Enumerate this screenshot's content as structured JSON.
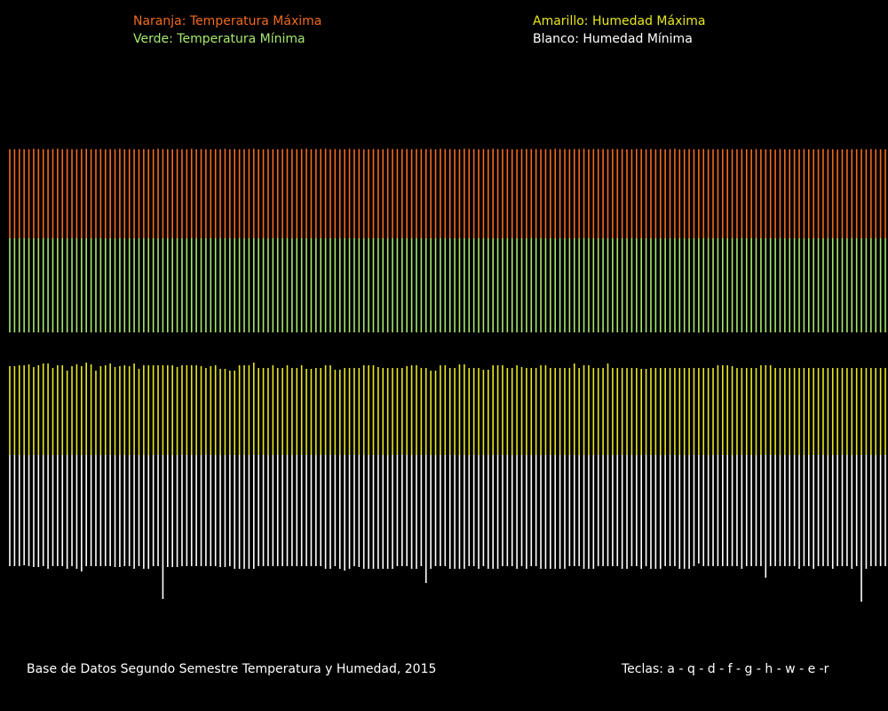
{
  "legend": {
    "orange": "Naranja: Temperatura Máxima",
    "green": "Verde: Temperatura Mínima",
    "yellow": "Amarillo: Humedad Máxima",
    "white": "Blanco: Humedad Mínima"
  },
  "footer": {
    "title": "Base de Datos Segundo Semestre Temperatura y Humedad, 2015",
    "keys": "Teclas: a - q - d - f - g - h - w - e -r"
  },
  "colors": {
    "orange": "#f26b1d",
    "green": "#a6e86e",
    "yellow": "#e8e820",
    "white": "#ffffff",
    "background": "#000000"
  },
  "chart_data": {
    "type": "bar",
    "layout": "mirrored vertical line bars per day",
    "n_days": 184,
    "series": [
      {
        "name": "Temperatura Máxima",
        "color": "orange",
        "values": [
          30.0,
          30.0,
          30.1,
          30.0,
          30.0,
          30.2,
          30.1,
          30.0,
          30.0,
          30.1,
          30.2,
          30.0,
          30.1,
          30.0,
          30.0,
          30.1,
          30.2,
          30.0,
          30.0,
          30.1,
          30.0,
          30.1,
          30.0,
          30.2,
          30.0,
          30.1,
          30.0,
          30.0,
          30.1,
          30.0,
          30.0,
          30.2,
          30.1,
          30.0,
          30.0,
          30.1,
          30.0,
          30.0,
          30.2,
          30.0,
          30.1,
          30.0,
          30.0,
          30.1,
          30.0,
          30.2,
          30.0,
          30.1,
          30.0,
          30.0,
          30.1,
          30.2,
          30.0,
          30.0,
          30.1,
          30.0,
          30.0,
          30.1,
          30.2,
          30.1,
          30.0,
          30.1,
          30.2,
          30.0,
          30.1,
          30.1,
          30.2,
          30.0,
          30.1,
          30.0,
          30.0,
          30.2,
          30.0,
          30.1,
          30.0,
          30.0,
          30.1,
          30.0,
          30.0,
          30.2,
          30.1,
          30.1,
          30.1,
          30.1,
          30.0,
          30.1,
          30.1,
          30.1,
          30.1,
          30.0,
          30.2,
          30.1,
          30.1,
          30.0,
          30.0,
          30.2,
          30.1,
          30.1,
          30.0,
          30.1,
          30.0,
          30.2,
          30.1,
          30.1,
          30.1,
          30.0,
          30.0,
          30.1,
          30.1,
          30.1,
          30.1,
          30.0,
          30.1,
          30.0,
          30.2,
          30.1,
          30.1,
          30.0,
          30.1,
          30.1,
          30.2,
          30.0,
          30.1,
          30.1,
          30.1,
          30.0,
          30.1,
          30.1,
          30.1,
          30.0,
          30.0,
          30.1,
          30.1,
          30.0,
          30.1,
          30.0,
          30.1,
          30.0,
          30.1,
          30.2,
          30.0,
          30.0,
          30.1,
          30.0,
          30.0,
          30.1,
          30.0,
          30.0,
          30.0,
          30.1,
          30.0,
          30.0,
          30.0,
          30.1,
          30.0,
          30.0,
          30.1,
          30.0,
          30.0,
          30.0,
          29.9,
          30.1,
          30.0,
          30.0,
          30.0,
          30.0,
          30.1,
          30.0,
          30.0,
          30.0,
          30.1,
          30.0,
          30.0,
          29.9,
          30.0,
          30.0,
          30.0,
          30.0,
          30.1,
          30.0,
          30.1,
          30.0,
          30.0,
          30.0,
          30.0,
          30.0
        ]
      },
      {
        "name": "Temperatura Mínima",
        "color": "green",
        "values": [
          30.0,
          30.0,
          30.0,
          30.0,
          30.0,
          30.0,
          30.0,
          30.0,
          30.0,
          30.0,
          30.0,
          30.0,
          30.0,
          30.0,
          30.0,
          30.0,
          30.0,
          30.0,
          30.0,
          30.0,
          30.0,
          30.0,
          30.0,
          30.0,
          30.0,
          30.0,
          30.0,
          30.0,
          30.0,
          30.0,
          30.0,
          30.0,
          30.0,
          30.0,
          30.0,
          30.0,
          30.0,
          30.0,
          30.0,
          30.0,
          30.0,
          30.0,
          30.0,
          30.0,
          30.0,
          30.0,
          30.0,
          30.0,
          30.0,
          30.0,
          30.0,
          30.0,
          30.0,
          30.0,
          30.0,
          30.0,
          30.0,
          30.0,
          30.0,
          30.0,
          30.0,
          30.0,
          30.0,
          30.0,
          30.0,
          30.0,
          30.0,
          30.0,
          30.0,
          30.0,
          30.0,
          30.0,
          30.0,
          30.0,
          30.0,
          30.0,
          30.0,
          30.0,
          30.0,
          30.0,
          30.0,
          30.0,
          30.0,
          30.0,
          30.0,
          30.0,
          30.0,
          30.0,
          30.0,
          30.0,
          30.0,
          30.0,
          30.0,
          30.0,
          30.0,
          30.0,
          30.0,
          30.0,
          30.1,
          30.0,
          30.0,
          30.0,
          30.0,
          30.0,
          30.0,
          30.0,
          30.0,
          30.0,
          30.0,
          30.0,
          30.0,
          30.0,
          30.0,
          30.0,
          30.0,
          30.0,
          30.0,
          30.0,
          30.0,
          30.0,
          30.0,
          30.0,
          30.0,
          30.0,
          30.0,
          30.0,
          30.0,
          30.0,
          30.0,
          30.0,
          30.0,
          30.0,
          30.0,
          30.0,
          30.0,
          30.0,
          30.0,
          30.0,
          30.0,
          30.0,
          30.0,
          30.0,
          30.0,
          30.0,
          30.1,
          30.0,
          30.0,
          30.0,
          30.0,
          30.0,
          30.0,
          30.0,
          30.0,
          30.0,
          30.0,
          30.0,
          30.0,
          30.0,
          30.0,
          30.0,
          30.0,
          30.0,
          30.0,
          30.0,
          30.0,
          30.0,
          30.0,
          30.0,
          30.0,
          30.0,
          30.0,
          30.0,
          30.0,
          30.0,
          30.0,
          30.0,
          30.0,
          30.0,
          30.0,
          30.0,
          30.0,
          30.0,
          30.0,
          30.0,
          30.0,
          30.0,
          30.0,
          30.0
        ]
      },
      {
        "name": "Humedad Máxima",
        "color": "yellow",
        "values": [
          100,
          100,
          101,
          101,
          102,
          99,
          101,
          103,
          103,
          98,
          101,
          101,
          95,
          100,
          102,
          100,
          104,
          102,
          95,
          100,
          101,
          103,
          99,
          100,
          101,
          100,
          103,
          97,
          101,
          101,
          101,
          101,
          101,
          101,
          101,
          99,
          101,
          101,
          101,
          101,
          100,
          98,
          100,
          101,
          97,
          97,
          95,
          95,
          101,
          101,
          101,
          104,
          98,
          98,
          98,
          101,
          98,
          98,
          101,
          98,
          98,
          101,
          97,
          97,
          98,
          98,
          101,
          101,
          96,
          96,
          98,
          98,
          98,
          98,
          101,
          101,
          101,
          99,
          98,
          98,
          98,
          98,
          98,
          100,
          101,
          101,
          98,
          98,
          95,
          95,
          101,
          101,
          98,
          98,
          102,
          102,
          98,
          98,
          98,
          96,
          96,
          101,
          101,
          101,
          98,
          98,
          101,
          99,
          98,
          98,
          98,
          101,
          101,
          98,
          98,
          98,
          98,
          98,
          103,
          98,
          101,
          101,
          98,
          98,
          98,
          103,
          98,
          98,
          98,
          98,
          98,
          98,
          97,
          97,
          98,
          98,
          98,
          98,
          98,
          98,
          98,
          98,
          98,
          98,
          98,
          98,
          98,
          98,
          101,
          101,
          101,
          100,
          98,
          98,
          98,
          98,
          98,
          101,
          101,
          101,
          98,
          98,
          98,
          98,
          98,
          98,
          98,
          98,
          98,
          98,
          98,
          98,
          98,
          98,
          98,
          98,
          98,
          98,
          98,
          98,
          98,
          98,
          98,
          98
        ]
      },
      {
        "name": "Humedad Mínima",
        "color": "white",
        "values": [
          125,
          125,
          125,
          124,
          125,
          126,
          126,
          125,
          128,
          125,
          125,
          125,
          128,
          125,
          128,
          131,
          125,
          125,
          125,
          125,
          125,
          125,
          126,
          126,
          125,
          125,
          128,
          125,
          128,
          128,
          125,
          125,
          162,
          126,
          126,
          126,
          125,
          125,
          125,
          125,
          125,
          125,
          125,
          125,
          126,
          126,
          125,
          128,
          128,
          128,
          128,
          128,
          125,
          125,
          125,
          125,
          125,
          125,
          125,
          125,
          125,
          125,
          125,
          125,
          125,
          125,
          128,
          128,
          125,
          128,
          130,
          128,
          125,
          126,
          128,
          128,
          128,
          128,
          128,
          128,
          128,
          125,
          125,
          125,
          128,
          128,
          125,
          144,
          128,
          125,
          125,
          125,
          128,
          128,
          128,
          128,
          125,
          125,
          128,
          125,
          128,
          128,
          128,
          125,
          125,
          125,
          128,
          125,
          128,
          125,
          125,
          128,
          128,
          128,
          128,
          128,
          128,
          125,
          125,
          125,
          128,
          128,
          128,
          125,
          125,
          125,
          125,
          125,
          128,
          128,
          125,
          125,
          128,
          125,
          128,
          128,
          128,
          125,
          125,
          125,
          128,
          128,
          128,
          125,
          122,
          125,
          125,
          125,
          125,
          125,
          125,
          125,
          125,
          128,
          125,
          125,
          125,
          125,
          138,
          125,
          125,
          125,
          125,
          125,
          125,
          128,
          125,
          125,
          128,
          125,
          125,
          125,
          128,
          125,
          125,
          125,
          128,
          125,
          165,
          128,
          125,
          125,
          125,
          125,
          125,
          125
        ]
      }
    ]
  }
}
